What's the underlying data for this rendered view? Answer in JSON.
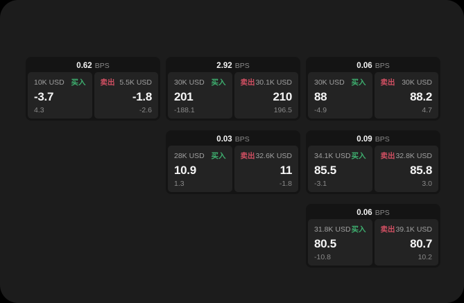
{
  "colors": {
    "panel_bg": "#1c1c1c",
    "card_bg": "#141414",
    "tile_bg": "#232323",
    "buy": "#3eaf6f",
    "sell": "#d04f62",
    "value": "#f5f5f5",
    "muted": "#8a8a8a",
    "label": "#a0a0a0"
  },
  "bps_unit": "BPS",
  "buy_action_label": "买入",
  "sell_action_label": "卖出",
  "cards": [
    {
      "bps": "0.62",
      "buy": {
        "size": "10K USD",
        "action": "买入",
        "price": "-3.7",
        "delta": "4.3"
      },
      "sell": {
        "action": "卖出",
        "size": "5.5K USD",
        "price": "-1.8",
        "delta": "-2.6"
      }
    },
    {
      "bps": "2.92",
      "buy": {
        "size": "30K USD",
        "action": "买入",
        "price": "201",
        "delta": "-188.1"
      },
      "sell": {
        "action": "卖出",
        "size": "30.1K USD",
        "price": "210",
        "delta": "196.5"
      }
    },
    {
      "bps": "0.06",
      "buy": {
        "size": "30K USD",
        "action": "买入",
        "price": "88",
        "delta": "-4.9"
      },
      "sell": {
        "action": "卖出",
        "size": "30K USD",
        "price": "88.2",
        "delta": "4.7"
      }
    },
    {
      "bps": "0.03",
      "buy": {
        "size": "28K USD",
        "action": "买入",
        "price": "10.9",
        "delta": "1.3"
      },
      "sell": {
        "action": "卖出",
        "size": "32.6K USD",
        "price": "11",
        "delta": "-1.8"
      }
    },
    {
      "bps": "0.09",
      "buy": {
        "size": "34.1K USD",
        "action": "买入",
        "price": "85.5",
        "delta": "-3.1"
      },
      "sell": {
        "action": "卖出",
        "size": "32.8K USD",
        "price": "85.8",
        "delta": "3.0"
      }
    },
    {
      "bps": "0.06",
      "buy": {
        "size": "31.8K USD",
        "action": "买入",
        "price": "80.5",
        "delta": "-10.8"
      },
      "sell": {
        "action": "卖出",
        "size": "39.1K USD",
        "price": "80.7",
        "delta": "10.2"
      }
    }
  ]
}
